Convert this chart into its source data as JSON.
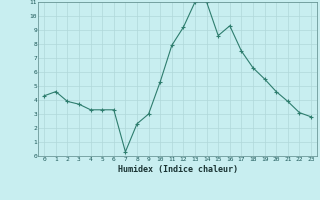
{
  "x": [
    0,
    1,
    2,
    3,
    4,
    5,
    6,
    7,
    8,
    9,
    10,
    11,
    12,
    13,
    14,
    15,
    16,
    17,
    18,
    19,
    20,
    21,
    22,
    23
  ],
  "y": [
    4.3,
    4.6,
    3.9,
    3.7,
    3.3,
    3.3,
    3.3,
    0.3,
    2.3,
    3.0,
    5.3,
    7.9,
    9.2,
    11.0,
    11.0,
    8.6,
    9.3,
    7.5,
    6.3,
    5.5,
    4.6,
    3.9,
    3.1,
    2.8
  ],
  "xlabel": "Humidex (Indice chaleur)",
  "line_color": "#2e7d6e",
  "bg_color": "#c8eef0",
  "grid_color": "#b0d8da",
  "ylim": [
    0,
    11
  ],
  "xlim": [
    -0.5,
    23.5
  ],
  "yticks": [
    0,
    1,
    2,
    3,
    4,
    5,
    6,
    7,
    8,
    9,
    10,
    11
  ],
  "xticks": [
    0,
    1,
    2,
    3,
    4,
    5,
    6,
    7,
    8,
    9,
    10,
    11,
    12,
    13,
    14,
    15,
    16,
    17,
    18,
    19,
    20,
    21,
    22,
    23
  ]
}
